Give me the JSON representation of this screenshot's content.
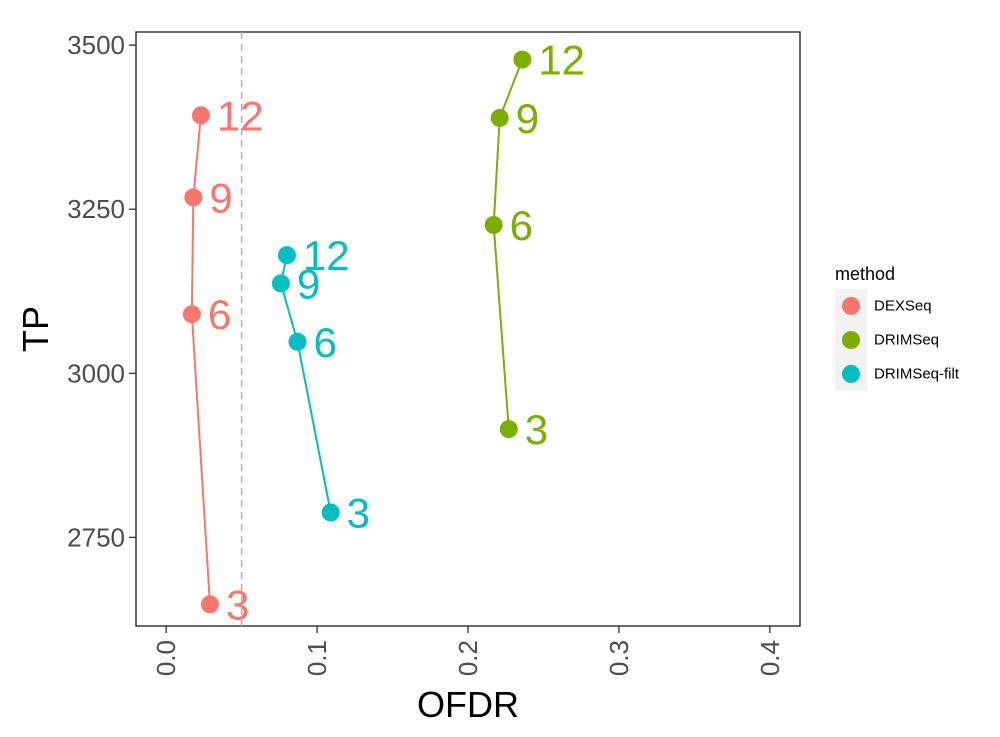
{
  "chart_data": {
    "type": "line",
    "xlabel": "OFDR",
    "ylabel": "TP",
    "xlim": [
      -0.02,
      0.42
    ],
    "ylim": [
      2615,
      3520
    ],
    "x_ticks": [
      0.0,
      0.1,
      0.2,
      0.3,
      0.4
    ],
    "x_tick_labels": [
      "0.0",
      "0.1",
      "0.2",
      "0.3",
      "0.4"
    ],
    "y_ticks": [
      2750,
      3000,
      3250,
      3500
    ],
    "y_tick_labels": [
      "2750",
      "3000",
      "3250",
      "3500"
    ],
    "reference_line": {
      "x": 0.05,
      "style": "dashed",
      "color": "#b3b3b3"
    },
    "grid": false,
    "legend": {
      "title": "method",
      "placement": "right"
    },
    "series": [
      {
        "name": "DEXSeq",
        "color": "#F8766D",
        "points": [
          {
            "label": "12",
            "x": 0.023,
            "y": 3393
          },
          {
            "label": "9",
            "x": 0.018,
            "y": 3268
          },
          {
            "label": "6",
            "x": 0.017,
            "y": 3090
          },
          {
            "label": "3",
            "x": 0.029,
            "y": 2648
          }
        ]
      },
      {
        "name": "DRIMSeq",
        "color": "#7CAE00",
        "points": [
          {
            "label": "12",
            "x": 0.236,
            "y": 3478
          },
          {
            "label": "9",
            "x": 0.221,
            "y": 3389
          },
          {
            "label": "6",
            "x": 0.217,
            "y": 3226
          },
          {
            "label": "3",
            "x": 0.227,
            "y": 2915
          }
        ]
      },
      {
        "name": "DRIMSeq-filt",
        "color": "#00BFC4",
        "points": [
          {
            "label": "12",
            "x": 0.08,
            "y": 3180
          },
          {
            "label": "9",
            "x": 0.076,
            "y": 3137
          },
          {
            "label": "6",
            "x": 0.087,
            "y": 3048
          },
          {
            "label": "3",
            "x": 0.109,
            "y": 2788
          }
        ]
      }
    ]
  }
}
